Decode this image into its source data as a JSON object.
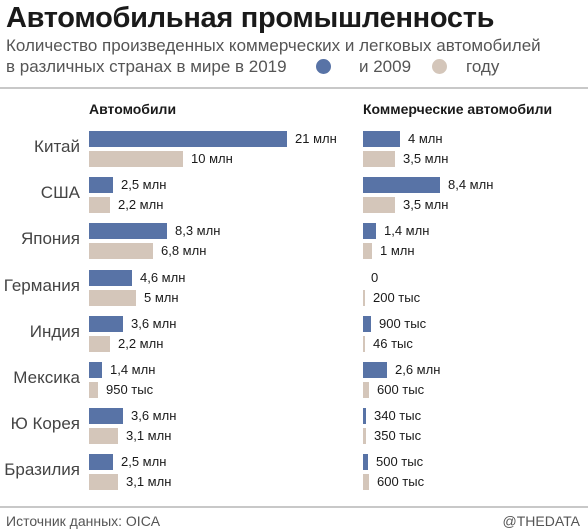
{
  "header": {
    "title": "Автомобильная промышленность",
    "subtitle_line1": "Количество произведенных коммерческих и легковых автомобилей",
    "subtitle_line2_start": "в различных странах в мире в 2019",
    "subtitle_mid": "и 2009",
    "subtitle_end": "году"
  },
  "colors": {
    "y2019": "#5873a6",
    "y2009": "#d4c6ba",
    "rule": "#c8c8c8"
  },
  "footer": {
    "source": "Источник данных: OICA",
    "brand": "@THEDATA"
  },
  "chart_data": [
    {
      "type": "bar",
      "orientation": "horizontal",
      "title": "Автомобили",
      "categories": [
        "Китай",
        "США",
        "Япония",
        "Германия",
        "Индия",
        "Мексика",
        "Ю Корея",
        "Бразилия"
      ],
      "series": [
        {
          "name": "2019",
          "values": [
            21000000,
            2500000,
            8300000,
            4600000,
            3600000,
            1400000,
            3600000,
            2500000
          ],
          "labels": [
            "21 млн",
            "2,5 млн",
            "8,3 млн",
            "4,6 млн",
            "3,6 млн",
            "1,4 млн",
            "3,6 млн",
            "2,5 млн"
          ]
        },
        {
          "name": "2009",
          "values": [
            10000000,
            2200000,
            6800000,
            5000000,
            2200000,
            950000,
            3100000,
            3100000
          ],
          "labels": [
            "10 млн",
            "2,2 млн",
            "6,8 млн",
            "5 млн",
            "2,2 млн",
            "950 тыс",
            "3,1 млн",
            "3,1 млн"
          ]
        }
      ]
    },
    {
      "type": "bar",
      "orientation": "horizontal",
      "title": "Коммерческие автомобили",
      "categories": [
        "Китай",
        "США",
        "Япония",
        "Германия",
        "Индия",
        "Мексика",
        "Ю Корея",
        "Бразилия"
      ],
      "series": [
        {
          "name": "2019",
          "values": [
            4000000,
            8400000,
            1400000,
            0,
            900000,
            2600000,
            340000,
            500000
          ],
          "labels": [
            "4 млн",
            "8,4 млн",
            "1,4 млн",
            "0",
            "900 тыс",
            "2,6 млн",
            "340 тыс",
            "500 тыс"
          ]
        },
        {
          "name": "2009",
          "values": [
            3500000,
            3500000,
            1000000,
            200000,
            46000,
            600000,
            350000,
            600000
          ],
          "labels": [
            "3,5 млн",
            "3,5 млн",
            "1 млн",
            "200 тыс",
            "46 тыс",
            "600 тыс",
            "350 тыс",
            "600 тыс"
          ]
        }
      ]
    }
  ]
}
